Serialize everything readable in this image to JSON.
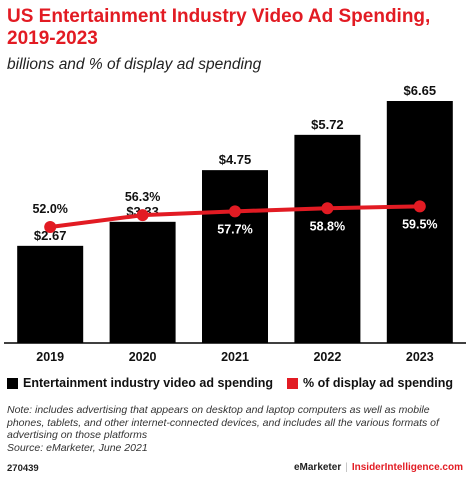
{
  "header": {
    "title": "US Entertainment Industry Video Ad Spending, 2019-2023",
    "subtitle": "billions and % of display ad spending"
  },
  "legend": {
    "bar_label": "Entertainment industry video ad spending",
    "line_label": "% of display ad spending"
  },
  "colors": {
    "bar": "#000000",
    "line": "#e21b23",
    "accent": "#e21b23"
  },
  "chart_data": {
    "type": "bar",
    "title": "US Entertainment Industry Video Ad Spending, 2019-2023",
    "subtitle": "billions and % of display ad spending",
    "categories": [
      "2019",
      "2020",
      "2021",
      "2022",
      "2023"
    ],
    "series": [
      {
        "name": "Entertainment industry video ad spending",
        "type": "bar",
        "values": [
          2.67,
          3.33,
          4.75,
          5.72,
          6.65
        ],
        "labels": [
          "$2.67",
          "$3.33",
          "$4.75",
          "$5.72",
          "$6.65"
        ]
      },
      {
        "name": "% of display ad spending",
        "type": "line",
        "values": [
          52.0,
          56.3,
          57.7,
          58.8,
          59.5
        ],
        "labels": [
          "52.0%",
          "56.3%",
          "57.7%",
          "58.8%",
          "59.5%"
        ]
      }
    ],
    "ylim": [
      0,
      6.65
    ],
    "grid": false,
    "legend_position": "bottom"
  },
  "note": "Note: includes advertising that appears on desktop and laptop computers as well as mobile phones, tablets, and other internet-connected devices, and includes all the various formats of advertising on those platforms",
  "source": "Source: eMarketer, June 2021",
  "footer": {
    "chart_id": "270439",
    "brand_left": "eMarketer",
    "separator": "|",
    "brand_right": "InsiderIntelligence.com"
  }
}
